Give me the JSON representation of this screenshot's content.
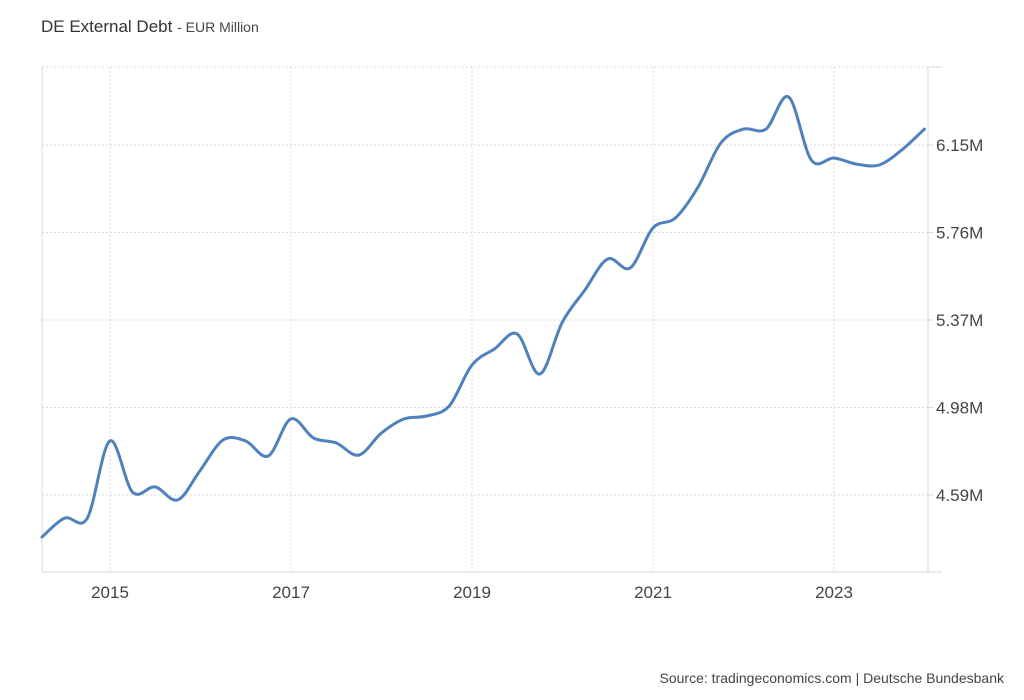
{
  "header": {
    "title": "DE External Debt",
    "subtitle": "- EUR Million"
  },
  "footer": {
    "source": "Source: tradingeconomics.com | Deutsche Bundesbank"
  },
  "colors": {
    "line": "#4F81BD",
    "grid": "#d9d9d9",
    "axis": "#d9d9d9",
    "text": "#444444"
  },
  "chart_data": {
    "type": "line",
    "title": "DE External Debt - EUR Million",
    "xlabel": "",
    "ylabel": "",
    "x_ticks": [
      "2015",
      "2017",
      "2019",
      "2021",
      "2023"
    ],
    "y_ticks": [
      "4.59M",
      "4.98M",
      "5.37M",
      "5.76M",
      "6.15M"
    ],
    "ylim": [
      4.24,
      6.52
    ],
    "grid": true,
    "legend": "none",
    "series": [
      {
        "name": "DE External Debt",
        "x": [
          "2014-Q1",
          "2014-Q2",
          "2014-Q3",
          "2014-Q4",
          "2015-Q1",
          "2015-Q2",
          "2015-Q3",
          "2015-Q4",
          "2016-Q1",
          "2016-Q2",
          "2016-Q3",
          "2016-Q4",
          "2017-Q1",
          "2017-Q2",
          "2017-Q3",
          "2017-Q4",
          "2018-Q1",
          "2018-Q2",
          "2018-Q3",
          "2018-Q4",
          "2019-Q1",
          "2019-Q2",
          "2019-Q3",
          "2019-Q4",
          "2020-Q1",
          "2020-Q2",
          "2020-Q3",
          "2020-Q4",
          "2021-Q1",
          "2021-Q2",
          "2021-Q3",
          "2021-Q4",
          "2022-Q1",
          "2022-Q2",
          "2022-Q3",
          "2022-Q4",
          "2023-Q1",
          "2023-Q2",
          "2023-Q3",
          "2023-Q4"
        ],
        "values_million_eur": [
          4403000,
          4487000,
          4487000,
          4831000,
          4603000,
          4626000,
          4568000,
          4701000,
          4835000,
          4831000,
          4764000,
          4929000,
          4844000,
          4822000,
          4768000,
          4866000,
          4929000,
          4942000,
          4987000,
          5169000,
          5241000,
          5308000,
          5129000,
          5361000,
          5504000,
          5642000,
          5602000,
          5780000,
          5825000,
          5963000,
          6159000,
          6221000,
          6221000,
          6364000,
          6083000,
          6092000,
          6065000,
          6061000,
          6128000,
          6221000
        ]
      }
    ]
  }
}
